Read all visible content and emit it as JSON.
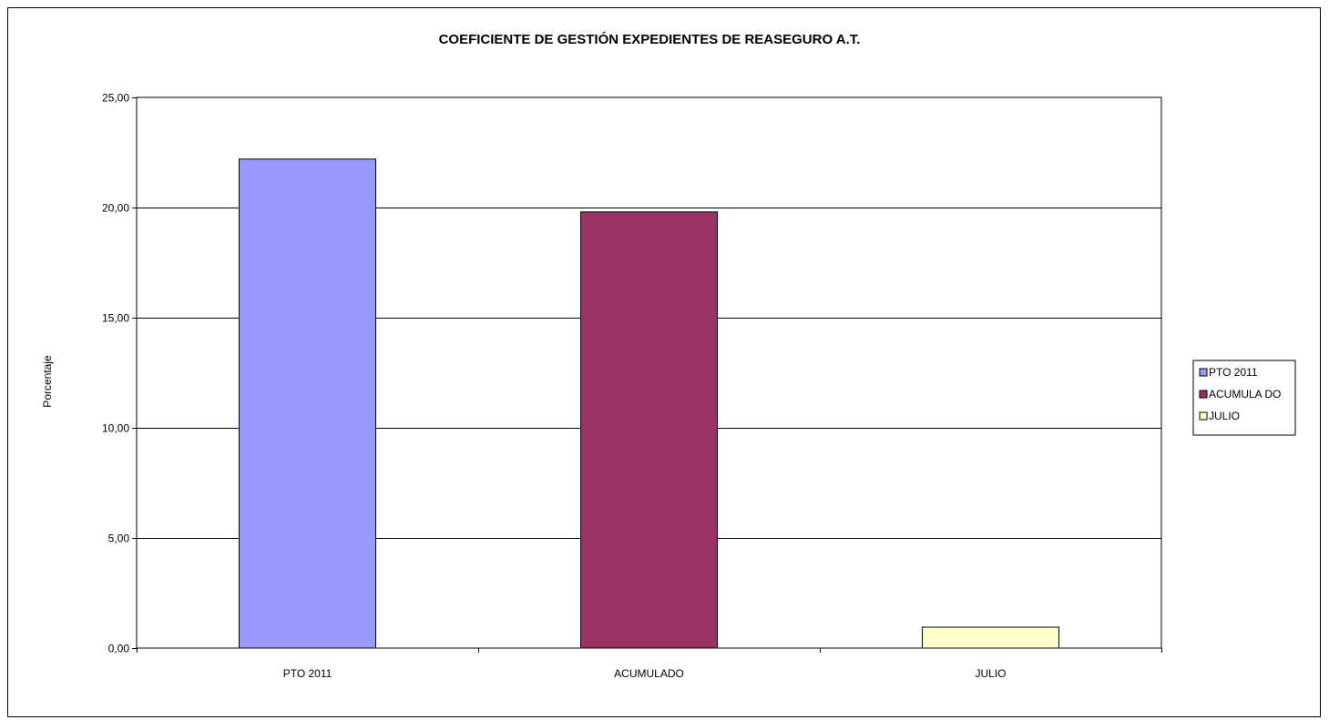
{
  "chart_data": {
    "type": "bar",
    "title": "COEFICIENTE DE GESTIÓN EXPEDIENTES DE REASEGURO A.T.",
    "xlabel": "",
    "ylabel": "Porcentaje",
    "categories": [
      "PTO 2011",
      "ACUMULADO",
      "JULIO"
    ],
    "values": [
      22.2,
      19.8,
      0.95
    ],
    "colors": [
      "#9999FF",
      "#993366",
      "#FFFFCC"
    ],
    "ylim": [
      0,
      25
    ],
    "yticks": [
      "0,00",
      "5,00",
      "10,00",
      "15,00",
      "20,00",
      "25,00"
    ],
    "ytick_values": [
      0,
      5,
      10,
      15,
      20,
      25
    ],
    "grid": true,
    "legend": {
      "placement": "right",
      "items": [
        {
          "label": "PTO  2011",
          "color": "#9999FF"
        },
        {
          "label": "ACUMULA DO",
          "color": "#993366"
        },
        {
          "label": "JULIO",
          "color": "#FFFFCC"
        }
      ]
    }
  }
}
